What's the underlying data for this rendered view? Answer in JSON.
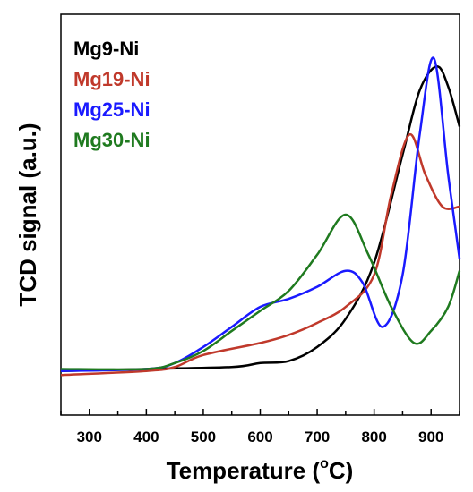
{
  "chart_data": {
    "type": "line",
    "xlabel": "Temperature (",
    "xlabel_unit_sup": "o",
    "xlabel_unit": "C)",
    "ylabel": "TCD signal (a.u.)",
    "xlim": [
      250,
      950
    ],
    "ylim": [
      0,
      100
    ],
    "xticks": [
      300,
      400,
      500,
      600,
      700,
      800,
      900
    ],
    "y_tick_labels_shown": false,
    "grid": false,
    "legend_placement": "top-left",
    "series": [
      {
        "name": "Mg9-Ni",
        "color": "#000000",
        "points": [
          [
            250,
            11.0
          ],
          [
            400,
            11.5
          ],
          [
            550,
            12.0
          ],
          [
            600,
            13.0
          ],
          [
            650,
            13.5
          ],
          [
            700,
            17.0
          ],
          [
            750,
            24.0
          ],
          [
            800,
            38.0
          ],
          [
            850,
            65.0
          ],
          [
            880,
            81.0
          ],
          [
            910,
            87.0
          ],
          [
            930,
            82.0
          ],
          [
            950,
            72.0
          ]
        ]
      },
      {
        "name": "Mg19-Ni",
        "color": "#c0392b",
        "points": [
          [
            250,
            10.0
          ],
          [
            400,
            11.0
          ],
          [
            450,
            12.0
          ],
          [
            500,
            15.0
          ],
          [
            600,
            18.0
          ],
          [
            650,
            20.0
          ],
          [
            700,
            23.0
          ],
          [
            750,
            27.0
          ],
          [
            800,
            35.0
          ],
          [
            830,
            55.0
          ],
          [
            862,
            70.0
          ],
          [
            890,
            60.0
          ],
          [
            920,
            52.0
          ],
          [
            950,
            52.0
          ]
        ]
      },
      {
        "name": "Mg25-Ni",
        "color": "#1a1aff",
        "points": [
          [
            250,
            11.0
          ],
          [
            400,
            11.5
          ],
          [
            450,
            13.0
          ],
          [
            500,
            17.0
          ],
          [
            550,
            22.0
          ],
          [
            600,
            27.0
          ],
          [
            650,
            29.0
          ],
          [
            700,
            32.0
          ],
          [
            750,
            36.0
          ],
          [
            780,
            33.0
          ],
          [
            815,
            22.0
          ],
          [
            850,
            35.0
          ],
          [
            880,
            70.0
          ],
          [
            905,
            89.0
          ],
          [
            930,
            60.0
          ],
          [
            950,
            39.0
          ]
        ]
      },
      {
        "name": "Mg30-Ni",
        "color": "#1f7a1f",
        "points": [
          [
            250,
            11.5
          ],
          [
            400,
            11.5
          ],
          [
            450,
            13.0
          ],
          [
            500,
            16.0
          ],
          [
            550,
            21.0
          ],
          [
            600,
            26.0
          ],
          [
            650,
            31.0
          ],
          [
            700,
            40.0
          ],
          [
            750,
            50.0
          ],
          [
            790,
            40.0
          ],
          [
            830,
            27.0
          ],
          [
            870,
            18.0
          ],
          [
            900,
            21.0
          ],
          [
            930,
            27.0
          ],
          [
            950,
            36.0
          ]
        ]
      }
    ]
  }
}
